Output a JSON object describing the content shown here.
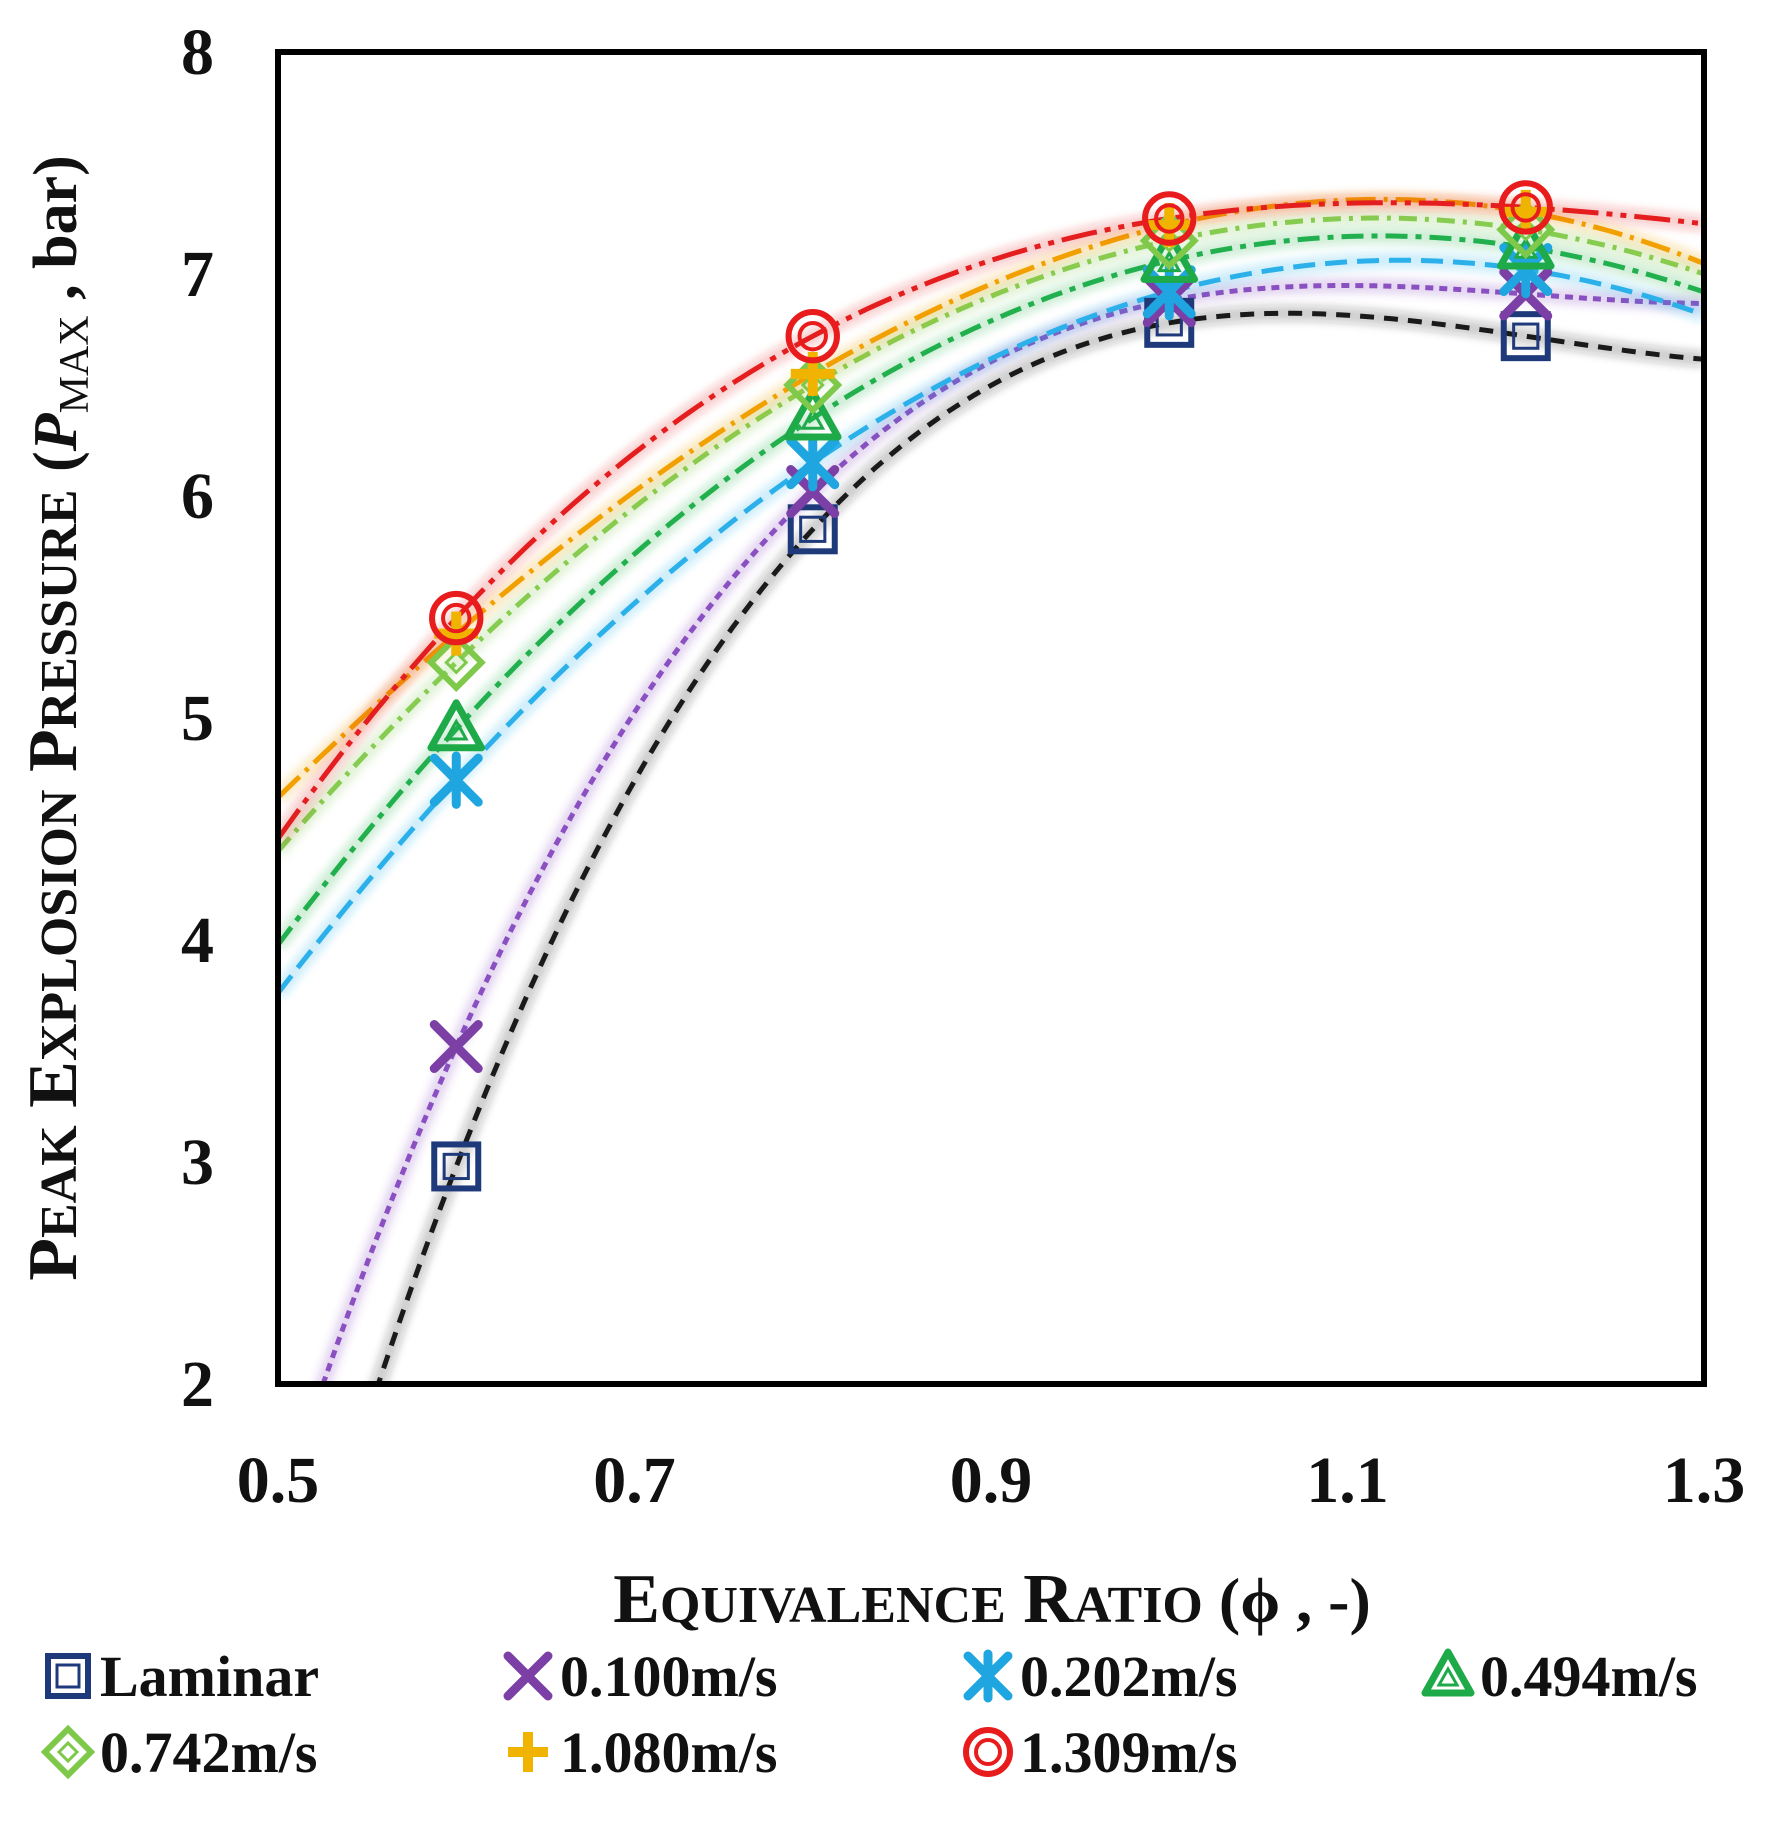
{
  "chart_data": {
    "type": "scatter",
    "title": "",
    "xlabel": "Equivalence Ratio (ϕ , -)",
    "xlabel_parts": {
      "cap1": "E",
      "rest1": "QUIVALENCE",
      "cap2": "R",
      "rest2": "ATIO",
      "tail": " (ϕ , -)"
    },
    "ylabel": "Peak Explosion Pressure (PMAX , bar)",
    "ylabel_parts": {
      "cap1": "P",
      "rest1": "EAK",
      "cap2": "E",
      "rest2": "XPLOSION",
      "cap3": "P",
      "rest3": "RESSURE",
      "open": "(",
      "sym": "P",
      "sub": "MAX",
      "tail": " , bar)"
    },
    "xlim": [
      0.5,
      1.3
    ],
    "ylim": [
      2,
      8
    ],
    "xticks": [
      "0.5",
      "0.7",
      "0.9",
      "1.1",
      "1.3"
    ],
    "yticks": [
      "2",
      "3",
      "4",
      "5",
      "6",
      "7",
      "8"
    ],
    "grid": false,
    "legend_position": "bottom",
    "x": [
      0.6,
      0.8,
      1.0,
      1.2
    ],
    "series": [
      {
        "name": "Laminar",
        "marker": "square",
        "color": "#1f3a7a",
        "line_color": "#1a1a1a",
        "dash": "14,10",
        "values": [
          2.98,
          5.85,
          6.78,
          6.72
        ],
        "fit": [
          -34.04,
          1.89,
          -8.365,
          2.59
        ]
      },
      {
        "name": "0.100m/s",
        "marker": "x",
        "color": "#7b3fa6",
        "line_color": "#8a4fc0",
        "dash": "8,6",
        "values": [
          3.52,
          6.02,
          6.88,
          6.91
        ],
        "fit": [
          -30.0,
          1.1,
          -6.29,
          2.58
        ]
      },
      {
        "name": "0.202m/s",
        "marker": "asterisk",
        "color": "#1fa5e0",
        "line_color": "#2bb0ea",
        "dash": "22,10",
        "values": [
          4.72,
          6.15,
          6.92,
          7.02
        ],
        "fit": [
          -14.3,
          0.175,
          -2.99,
          1.78
        ]
      },
      {
        "name": "0.494m/s",
        "marker": "triangle",
        "color": "#1faa4a",
        "line_color": "#22b04e",
        "dash": "22,8,6,8",
        "values": [
          4.95,
          6.35,
          7.06,
          7.12
        ],
        "fit": [
          -12.12,
          0.145,
          -2.76,
          1.41
        ]
      },
      {
        "name": "0.742m/s",
        "marker": "diamond",
        "color": "#7ec84a",
        "line_color": "#86cc50",
        "dash": "18,8,4,8",
        "values": [
          5.25,
          6.5,
          7.15,
          7.2
        ],
        "fit": [
          -9.94,
          0.115,
          -2.52,
          1.04
        ]
      },
      {
        "name": "1.080m/s",
        "marker": "plus",
        "color": "#f0b400",
        "line_color": "#f2a000",
        "dash": "30,8,4,8",
        "values": [
          5.38,
          6.55,
          7.22,
          7.28
        ],
        "fit": [
          -9.6,
          0.085,
          -2.4,
          0.99
        ]
      },
      {
        "name": "1.309m/s",
        "marker": "circle",
        "color": "#e81c1c",
        "line_color": "#e41e1e",
        "dash": "36,8,6,8,6,8",
        "values": [
          5.45,
          6.72,
          7.25,
          7.3
        ],
        "fit": [
          -9.26,
          0.055,
          -2.28,
          0.94
        ]
      }
    ]
  }
}
